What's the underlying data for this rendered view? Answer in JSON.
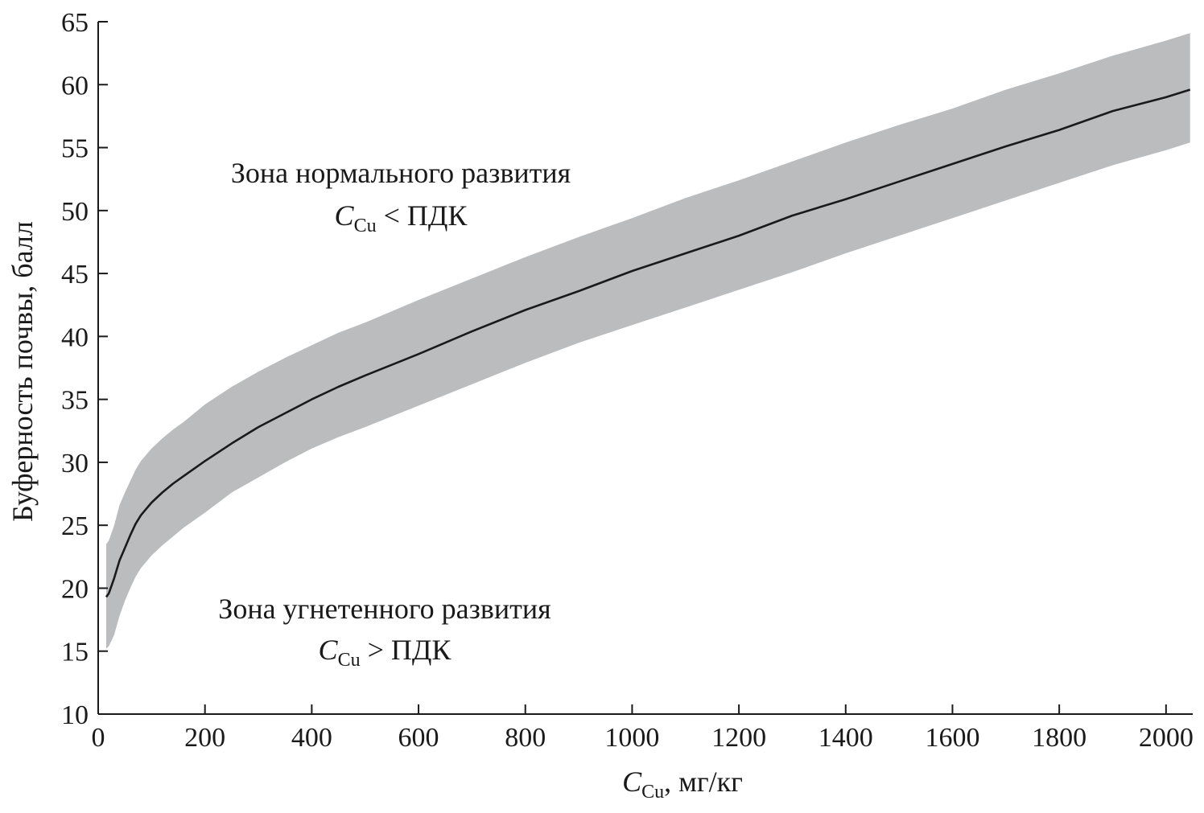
{
  "chart_data": {
    "type": "line",
    "xlabel": {
      "symbol": "C",
      "subscript": "Cu",
      "unit": ", мг/кг"
    },
    "ylabel": "Буферность почвы, балл",
    "xlim": [
      0,
      2050
    ],
    "ylim": [
      10,
      65
    ],
    "x_ticks": [
      0,
      200,
      400,
      600,
      800,
      1000,
      1200,
      1400,
      1600,
      1800,
      2000
    ],
    "y_ticks": [
      10,
      15,
      20,
      25,
      30,
      35,
      40,
      45,
      50,
      55,
      60,
      65
    ],
    "grid": false,
    "series": [
      {
        "role": "mean",
        "color": "#1a1a1a",
        "x": [
          15,
          20,
          30,
          40,
          50,
          60,
          70,
          80,
          90,
          100,
          120,
          140,
          160,
          180,
          200,
          250,
          300,
          350,
          400,
          450,
          500,
          600,
          700,
          800,
          900,
          1000,
          1100,
          1200,
          1300,
          1400,
          1500,
          1600,
          1700,
          1800,
          1900,
          2000,
          2045
        ],
        "y": [
          19.3,
          19.6,
          20.8,
          22.2,
          23.2,
          24.2,
          25.1,
          25.8,
          26.3,
          26.8,
          27.6,
          28.3,
          28.9,
          29.5,
          30.1,
          31.5,
          32.8,
          33.9,
          35.0,
          36.0,
          36.9,
          38.6,
          40.4,
          42.1,
          43.6,
          45.2,
          46.6,
          48.0,
          49.6,
          50.9,
          52.3,
          53.7,
          55.1,
          56.4,
          57.9,
          59.0,
          59.6
        ]
      },
      {
        "role": "band-upper",
        "color": "#bbbcbe",
        "x": [
          15,
          20,
          30,
          40,
          50,
          60,
          70,
          80,
          90,
          100,
          120,
          140,
          160,
          180,
          200,
          250,
          300,
          350,
          400,
          450,
          500,
          600,
          700,
          800,
          900,
          1000,
          1100,
          1200,
          1300,
          1400,
          1500,
          1600,
          1700,
          1800,
          1900,
          2000,
          2045
        ],
        "y": [
          23.5,
          23.8,
          25.0,
          26.6,
          27.6,
          28.5,
          29.4,
          30.1,
          30.6,
          31.1,
          31.9,
          32.6,
          33.2,
          33.9,
          34.6,
          36.0,
          37.2,
          38.3,
          39.3,
          40.3,
          41.1,
          42.9,
          44.6,
          46.3,
          47.9,
          49.4,
          51.0,
          52.4,
          53.9,
          55.4,
          56.8,
          58.1,
          59.6,
          60.9,
          62.3,
          63.5,
          64.1
        ]
      },
      {
        "role": "band-lower",
        "color": "#bbbcbe",
        "x": [
          15,
          20,
          30,
          40,
          50,
          60,
          70,
          80,
          90,
          100,
          120,
          140,
          160,
          180,
          200,
          250,
          300,
          350,
          400,
          450,
          500,
          600,
          700,
          800,
          900,
          1000,
          1100,
          1200,
          1300,
          1400,
          1500,
          1600,
          1700,
          1800,
          1900,
          2000,
          2045
        ],
        "y": [
          15.2,
          15.4,
          16.3,
          17.8,
          19.0,
          20.0,
          20.9,
          21.6,
          22.1,
          22.6,
          23.4,
          24.1,
          24.8,
          25.4,
          26.0,
          27.6,
          28.8,
          30.0,
          31.1,
          32.0,
          32.8,
          34.5,
          36.2,
          37.9,
          39.5,
          40.9,
          42.3,
          43.7,
          45.1,
          46.6,
          48.0,
          49.4,
          50.8,
          52.2,
          53.6,
          54.8,
          55.4
        ]
      }
    ],
    "annotations": [
      {
        "id": "normal",
        "line1": "Зона нормального развития",
        "symbol": "C",
        "subscript": "Cu",
        "relation": " < ПДК"
      },
      {
        "id": "suppressed",
        "line1": "Зона угнетенного развития",
        "symbol": "C",
        "subscript": "Cu",
        "relation": " > ПДК"
      }
    ]
  }
}
